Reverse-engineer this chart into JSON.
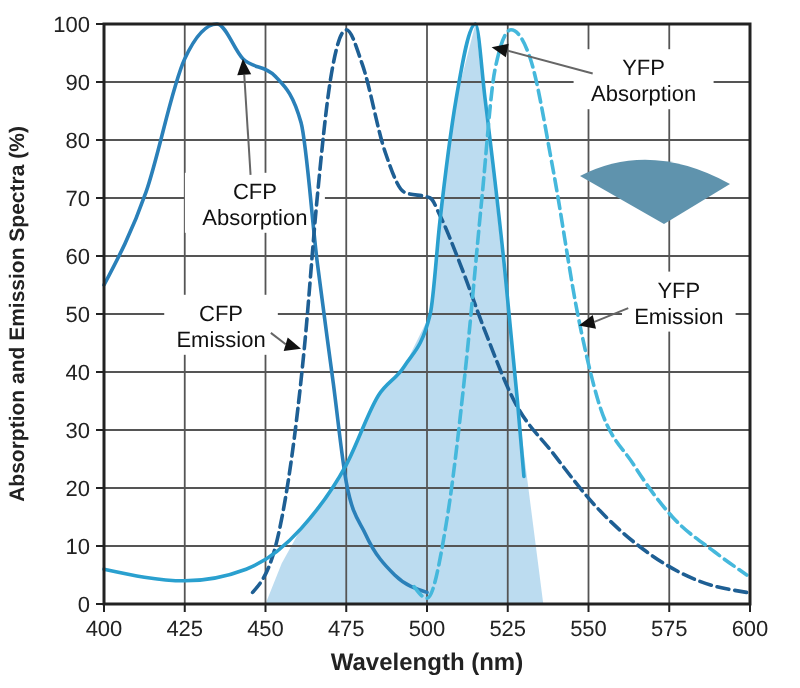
{
  "chart_data": {
    "type": "line",
    "xlabel": "Wavelength (nm)",
    "ylabel": "Absorption and Emission Spectra (%)",
    "xlim": [
      400,
      600
    ],
    "xticks": [
      400,
      425,
      450,
      475,
      500,
      525,
      550,
      575,
      600
    ],
    "ylim": [
      0,
      100
    ],
    "yticks": [
      0,
      10,
      20,
      30,
      40,
      50,
      60,
      70,
      80,
      90,
      100
    ],
    "grid": true,
    "marker": "none",
    "series": [
      {
        "type": "area",
        "color": "#b5d8ee",
        "x": [
          450,
          455,
          461,
          468,
          475,
          485,
          493,
          501,
          504,
          509,
          515,
          520,
          525,
          530,
          536
        ],
        "values": [
          0,
          7,
          13,
          18,
          24,
          36,
          41,
          50,
          66,
          87,
          100,
          76,
          51,
          26,
          0
        ]
      },
      {
        "color": "#2a80b9",
        "line_style": "solid",
        "x": [
          400,
          413,
          425,
          435,
          443,
          453,
          461,
          466,
          471,
          475,
          481,
          490,
          500
        ],
        "values": [
          55,
          71,
          94,
          100,
          94,
          91,
          83,
          59,
          38,
          21,
          12,
          5,
          2
        ]
      },
      {
        "color": "#1e5f94",
        "line_style": "dashed",
        "x": [
          446,
          454,
          462,
          466,
          470,
          475,
          480,
          487,
          493,
          501,
          504,
          510,
          518,
          527,
          539,
          552,
          568,
          584,
          599
        ],
        "values": [
          2,
          12,
          44,
          70,
          90,
          99,
          93,
          78,
          71,
          70,
          67,
          59,
          47,
          35,
          26,
          17,
          9,
          4,
          2
        ]
      },
      {
        "color": "#2aa0cf",
        "line_style": "solid",
        "x": [
          400,
          425,
          444,
          461,
          475,
          485,
          493,
          501,
          504,
          509,
          515,
          518,
          524,
          528,
          530
        ],
        "values": [
          6,
          4,
          6,
          13,
          24,
          36,
          41,
          50,
          66,
          87,
          100,
          87,
          58,
          35,
          22
        ]
      },
      {
        "color": "#45b8dc",
        "line_style": "dashed",
        "x": [
          496,
          500,
          506,
          512,
          517,
          521,
          526,
          532,
          539,
          547,
          553,
          564,
          576,
          589,
          599
        ],
        "values": [
          3,
          1,
          14,
          41,
          70,
          92,
          99,
          94,
          75,
          49,
          35,
          24,
          15,
          9,
          5
        ]
      }
    ],
    "annotations": [
      {
        "text": "CFP Absorption",
        "x": 443,
        "y": 94
      },
      {
        "text": "CFP Emission",
        "x": 461,
        "y": 44
      },
      {
        "text": "YFP Absorption",
        "x": 520,
        "y": 96
      },
      {
        "text": "YFP Emission",
        "x": 547,
        "y": 48
      }
    ]
  }
}
